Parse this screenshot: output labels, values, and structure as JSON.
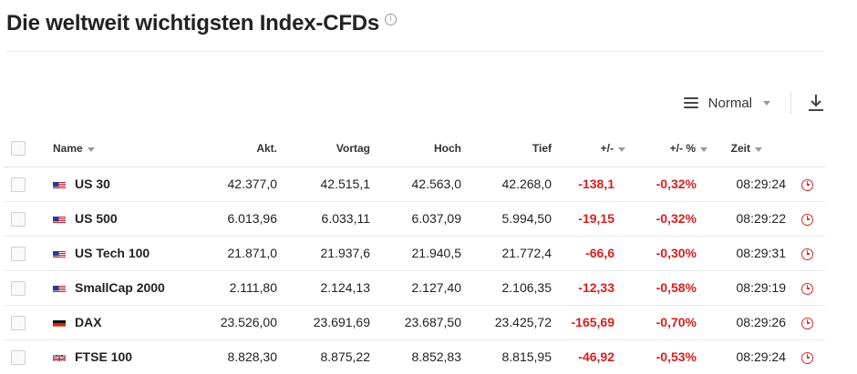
{
  "header": {
    "title": "Die weltweit wichtigsten Index-CFDs",
    "info_icon": "info-icon"
  },
  "toolbar": {
    "view_label": "Normal",
    "view_icon": "list-icon",
    "download_icon": "download-icon"
  },
  "colors": {
    "negative": "#d61f1f",
    "clock": "#d92b2b"
  },
  "table": {
    "columns": {
      "name": "Name",
      "akt": "Akt.",
      "vortag": "Vortag",
      "hoch": "Hoch",
      "tief": "Tief",
      "change": "+/-",
      "change_pct": "+/- %",
      "zeit": "Zeit"
    },
    "rows": [
      {
        "flag": "us",
        "name": "US 30",
        "akt": "42.377,0",
        "vortag": "42.515,1",
        "hoch": "42.563,0",
        "tief": "42.268,0",
        "change": "-138,1",
        "change_pct": "-0,32%",
        "zeit": "08:29:24"
      },
      {
        "flag": "us",
        "name": "US 500",
        "akt": "6.013,96",
        "vortag": "6.033,11",
        "hoch": "6.037,09",
        "tief": "5.994,50",
        "change": "-19,15",
        "change_pct": "-0,32%",
        "zeit": "08:29:22"
      },
      {
        "flag": "us",
        "name": "US Tech 100",
        "akt": "21.871,0",
        "vortag": "21.937,6",
        "hoch": "21.940,5",
        "tief": "21.772,4",
        "change": "-66,6",
        "change_pct": "-0,30%",
        "zeit": "08:29:31"
      },
      {
        "flag": "us",
        "name": "SmallCap 2000",
        "akt": "2.111,80",
        "vortag": "2.124,13",
        "hoch": "2.127,40",
        "tief": "2.106,35",
        "change": "-12,33",
        "change_pct": "-0,58%",
        "zeit": "08:29:19"
      },
      {
        "flag": "de",
        "name": "DAX",
        "akt": "23.526,00",
        "vortag": "23.691,69",
        "hoch": "23.687,50",
        "tief": "23.425,72",
        "change": "-165,69",
        "change_pct": "-0,70%",
        "zeit": "08:29:26"
      },
      {
        "flag": "gb",
        "name": "FTSE 100",
        "akt": "8.828,30",
        "vortag": "8.875,22",
        "hoch": "8.852,83",
        "tief": "8.815,95",
        "change": "-46,92",
        "change_pct": "-0,53%",
        "zeit": "08:29:24"
      }
    ]
  }
}
